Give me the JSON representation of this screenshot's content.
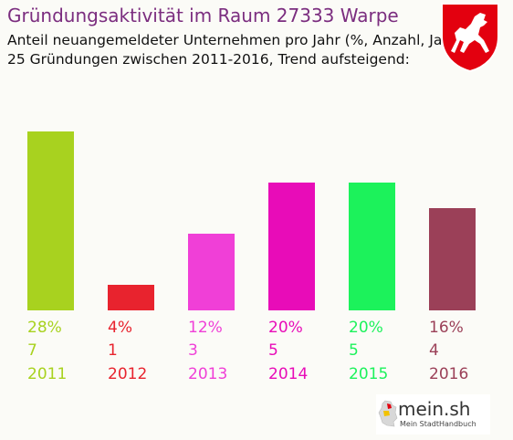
{
  "header": {
    "title": "Gründungsaktivität im Raum 27333 Warpe",
    "subtitle_line1": "Anteil neuangemeldeter Unternehmen pro Jahr (%, Anzahl, Jahr)",
    "subtitle_line2": "25 Gründungen zwischen 2011-2016, Trend aufsteigend:"
  },
  "logo": {
    "brand": "mein.sh",
    "tagline": "Mein StadtHandbuch"
  },
  "chart_data": {
    "type": "bar",
    "categories": [
      "2011",
      "2012",
      "2013",
      "2014",
      "2015",
      "2016"
    ],
    "values": [
      28,
      4,
      12,
      20,
      20,
      16
    ],
    "counts": [
      7,
      1,
      3,
      5,
      5,
      4
    ],
    "percent_labels": [
      "28%",
      "4%",
      "12%",
      "20%",
      "20%",
      "16%"
    ],
    "colors": [
      "#a8d21f",
      "#e8232e",
      "#f03fd7",
      "#e80cb8",
      "#1cf25b",
      "#9b4058"
    ],
    "ylim": [
      0,
      28
    ],
    "grid": false,
    "legend": "none"
  }
}
